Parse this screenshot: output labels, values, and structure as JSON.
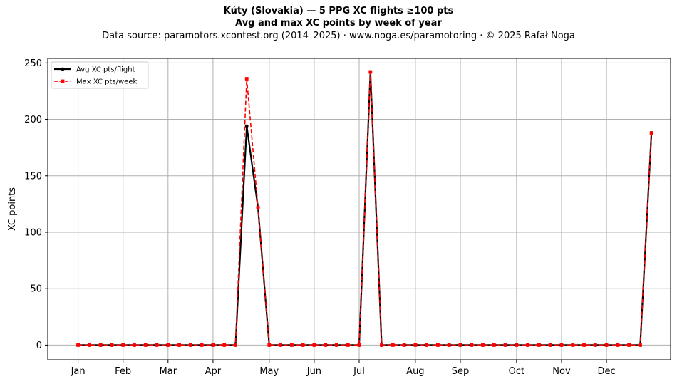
{
  "chart_data": {
    "type": "line",
    "title": "Kúty (Slovakia)  —  5 PPG XC flights ≥100 pts",
    "subtitle": "Avg and max XC points by week of year",
    "caption": "Data source: paramotors.xcontest.org (2014–2025)  ·  www.noga.es/paramotoring  ·  © 2025 Rafał Noga",
    "xlabel": "",
    "ylabel": "XC points",
    "xlim": [
      -1.7,
      53.7
    ],
    "ylim": [
      -13,
      254
    ],
    "grid": true,
    "legend_position": "top-left",
    "x_ticks": [
      {
        "label": "Jan",
        "x": 1
      },
      {
        "label": "Feb",
        "x": 5
      },
      {
        "label": "Mar",
        "x": 9
      },
      {
        "label": "Apr",
        "x": 13
      },
      {
        "label": "May",
        "x": 18
      },
      {
        "label": "Jun",
        "x": 22
      },
      {
        "label": "Jul",
        "x": 26
      },
      {
        "label": "Aug",
        "x": 31
      },
      {
        "label": "Sep",
        "x": 35
      },
      {
        "label": "Oct",
        "x": 40
      },
      {
        "label": "Nov",
        "x": 44
      },
      {
        "label": "Dec",
        "x": 48
      }
    ],
    "y_ticks": [
      0,
      50,
      100,
      150,
      200,
      250
    ],
    "x": [
      1,
      2,
      3,
      4,
      5,
      6,
      7,
      8,
      9,
      10,
      11,
      12,
      13,
      14,
      15,
      16,
      17,
      18,
      19,
      20,
      21,
      22,
      23,
      24,
      25,
      26,
      27,
      28,
      29,
      30,
      31,
      32,
      33,
      34,
      35,
      36,
      37,
      38,
      39,
      40,
      41,
      42,
      43,
      44,
      45,
      46,
      47,
      48,
      49,
      50,
      51,
      52
    ],
    "series": [
      {
        "name": "Avg XC pts/flight",
        "color": "#000000",
        "style": "solid",
        "marker": "circle",
        "values": [
          0,
          0,
          0,
          0,
          0,
          0,
          0,
          0,
          0,
          0,
          0,
          0,
          0,
          0,
          0,
          194,
          122,
          0,
          0,
          0,
          0,
          0,
          0,
          0,
          0,
          0,
          242,
          0,
          0,
          0,
          0,
          0,
          0,
          0,
          0,
          0,
          0,
          0,
          0,
          0,
          0,
          0,
          0,
          0,
          0,
          0,
          0,
          0,
          0,
          0,
          0,
          188
        ]
      },
      {
        "name": "Max XC pts/week",
        "color": "#ff0000",
        "style": "dashed",
        "marker": "square",
        "values": [
          0,
          0,
          0,
          0,
          0,
          0,
          0,
          0,
          0,
          0,
          0,
          0,
          0,
          0,
          0,
          236,
          122,
          0,
          0,
          0,
          0,
          0,
          0,
          0,
          0,
          0,
          242,
          0,
          0,
          0,
          0,
          0,
          0,
          0,
          0,
          0,
          0,
          0,
          0,
          0,
          0,
          0,
          0,
          0,
          0,
          0,
          0,
          0,
          0,
          0,
          0,
          188
        ]
      }
    ]
  }
}
